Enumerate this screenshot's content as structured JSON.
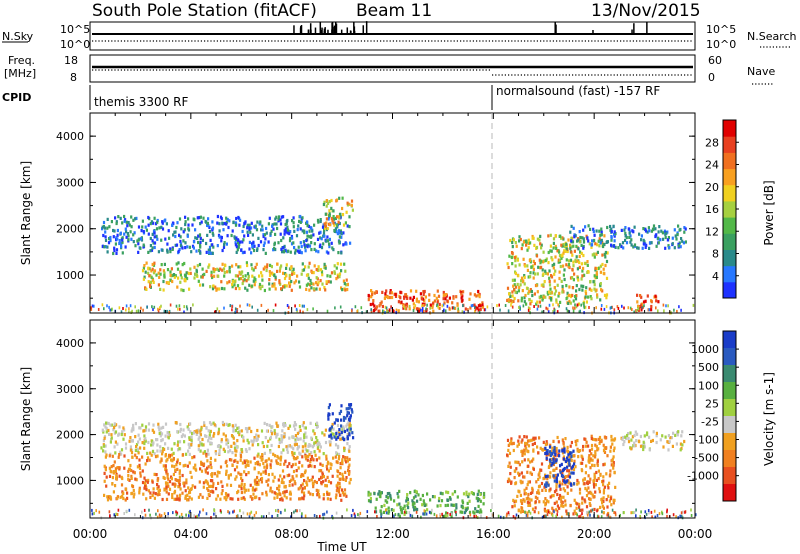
{
  "header": {
    "title": "South Pole Station (fitACF)",
    "beam": "Beam 11",
    "date": "13/Nov/2015"
  },
  "top_panels": {
    "nsky_label": "N.Sky",
    "nsky_scale_top": "10^5",
    "nsky_scale_bottom": "10^0",
    "nsearch_label": "N.Search",
    "freq_label_line1": "Freq.",
    "freq_label_line2": "[MHz]",
    "freq_scale_top": "18",
    "freq_scale_bottom": "8",
    "nave_label": "Nave",
    "nave_scale_top": "60",
    "nave_scale_bottom": "0",
    "cpid_label": "CPID",
    "cpid_mode_1": "themis 3300 RF",
    "cpid_mode_2": "normalsound (fast) -157 RF"
  },
  "chart_data": [
    {
      "type": "heatmap",
      "name": "Power",
      "ylabel": "Slant Range [km]",
      "xlabel": "",
      "x_range_hours": [
        0,
        24
      ],
      "ylim": [
        180,
        4500
      ],
      "yticks": [
        "1000",
        "2000",
        "3000",
        "4000"
      ],
      "colorbar": {
        "label": "Power [dB]",
        "ticks": [
          "4",
          "8",
          "12",
          "16",
          "20",
          "24",
          "28"
        ],
        "colors": [
          "#1e32ff",
          "#2878ff",
          "#2a8a8a",
          "#3aa060",
          "#52b848",
          "#a6d040",
          "#f0d020",
          "#f8a020",
          "#f07020",
          "#e84020",
          "#e00000"
        ]
      },
      "regions": [
        {
          "t0": 0.4,
          "t1": 10.3,
          "r0": 1500,
          "r1": 2300,
          "level": "low"
        },
        {
          "t0": 2.0,
          "t1": 10.2,
          "r0": 700,
          "r1": 1300,
          "level": "mid"
        },
        {
          "t0": 9.2,
          "t1": 10.4,
          "r0": 2000,
          "r1": 2700,
          "level": "mid"
        },
        {
          "t0": 11.0,
          "t1": 15.6,
          "r0": 250,
          "r1": 700,
          "level": "high"
        },
        {
          "t0": 16.5,
          "t1": 20.5,
          "r0": 400,
          "r1": 1900,
          "level": "mid"
        },
        {
          "t0": 19.0,
          "t1": 23.6,
          "r0": 1600,
          "r1": 2100,
          "level": "low"
        },
        {
          "t0": 21.6,
          "t1": 22.6,
          "r0": 250,
          "r1": 600,
          "level": "high"
        }
      ]
    },
    {
      "type": "heatmap",
      "name": "Velocity",
      "ylabel": "Slant Range [km]",
      "xlabel": "Time UT",
      "x_range_hours": [
        0,
        24
      ],
      "ylim": [
        180,
        4500
      ],
      "yticks": [
        "1000",
        "2000",
        "3000",
        "4000"
      ],
      "xticks": [
        "00:00",
        "04:00",
        "08:00",
        "12:00",
        "16:00",
        "20:00",
        "00:00"
      ],
      "colorbar": {
        "label": "Velocity [m s-1]",
        "ticks": [
          "1000",
          "500",
          "100",
          "25",
          "-25",
          "-100",
          "-500",
          "-1000"
        ],
        "colors": [
          "#1a3cc8",
          "#2a5ac0",
          "#3a8a70",
          "#58b040",
          "#a0d040",
          "#c8c8c8",
          "#f0a020",
          "#f08020",
          "#e85020",
          "#e01010"
        ]
      },
      "regions": [
        {
          "t0": 0.4,
          "t1": 10.3,
          "r0": 1600,
          "r1": 2300,
          "level": "zero"
        },
        {
          "t0": 0.5,
          "t1": 10.3,
          "r0": 600,
          "r1": 1600,
          "level": "away"
        },
        {
          "t0": 9.4,
          "t1": 10.4,
          "r0": 1900,
          "r1": 2700,
          "level": "toward_fast"
        },
        {
          "t0": 11.0,
          "t1": 15.6,
          "r0": 250,
          "r1": 800,
          "level": "toward_slow"
        },
        {
          "t0": 16.5,
          "t1": 20.8,
          "r0": 300,
          "r1": 2000,
          "level": "away"
        },
        {
          "t0": 18.0,
          "t1": 19.2,
          "r0": 900,
          "r1": 1800,
          "level": "toward_fast"
        },
        {
          "t0": 21.0,
          "t1": 23.6,
          "r0": 1700,
          "r1": 2100,
          "level": "zero"
        }
      ]
    }
  ],
  "style": {
    "axis_color": "#000000",
    "dashed_marker_color": "#b0b0b0",
    "mode_change_hour": 16
  }
}
